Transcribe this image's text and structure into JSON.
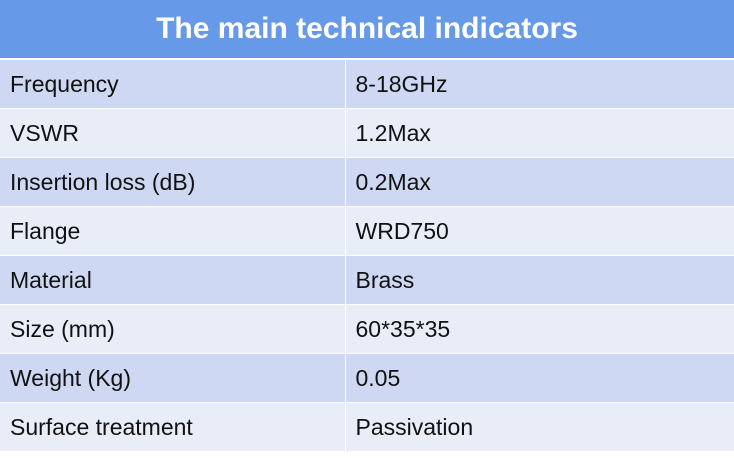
{
  "table": {
    "title": "The main technical indicators",
    "colors": {
      "header_bg": "#6699e8",
      "row_a": "#ced8f2",
      "row_b": "#e8edf8"
    },
    "rows": [
      {
        "label": "Frequency",
        "value": "8-18GHz"
      },
      {
        "label": "VSWR",
        "value": "1.2Max"
      },
      {
        "label": "Insertion loss (dB)",
        "value": "0.2Max"
      },
      {
        "label": "Flange",
        "value": "WRD750"
      },
      {
        "label": "Material",
        "value": "Brass"
      },
      {
        "label": "Size (mm)",
        "value": "60*35*35"
      },
      {
        "label": "Weight (Kg)",
        "value": "0.05"
      },
      {
        "label": "Surface treatment",
        "value": "Passivation"
      }
    ]
  }
}
